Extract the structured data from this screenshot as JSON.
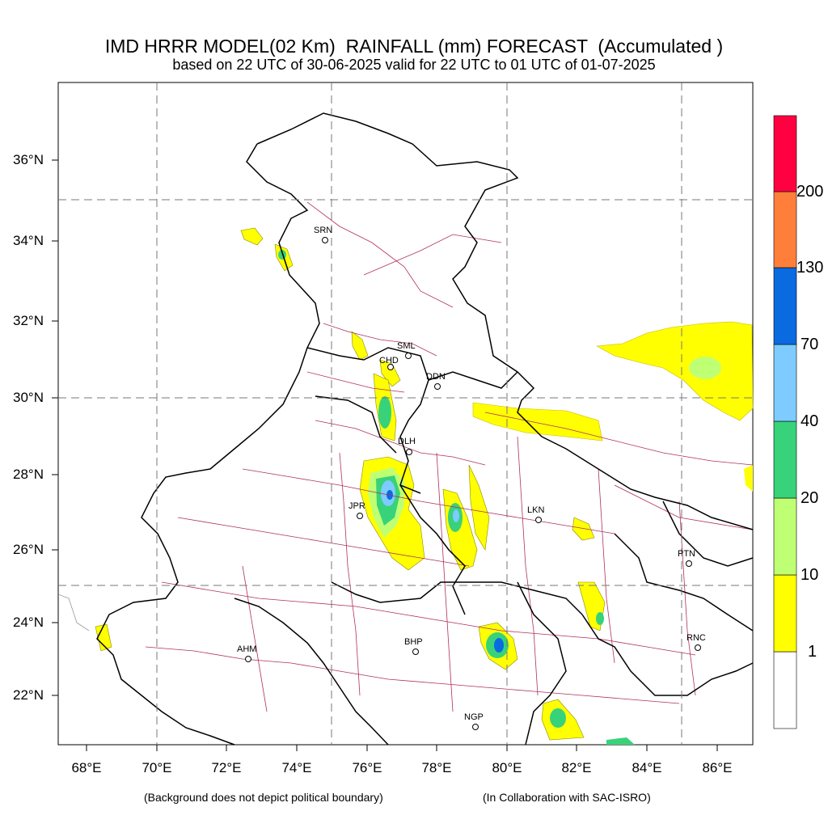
{
  "title": {
    "line1": "IMD HRRR MODEL(02 Km)  RAINFALL (mm) FORECAST  (Accumulated )",
    "line2": "based on 22 UTC of 30-06-2025 valid for 22 UTC to 01 UTC of 01-07-2025"
  },
  "axes": {
    "lat_labels": [
      "36°N",
      "34°N",
      "32°N",
      "30°N",
      "28°N",
      "26°N",
      "24°N",
      "22°N"
    ],
    "lon_labels": [
      "68°E",
      "70°E",
      "72°E",
      "74°E",
      "76°E",
      "78°E",
      "80°E",
      "82°E",
      "84°E",
      "86°E"
    ]
  },
  "colorbar": {
    "labels": [
      "1",
      "10",
      "20",
      "40",
      "70",
      "130",
      "200"
    ],
    "colors": [
      "#ffffff",
      "#ffff00",
      "#bfff73",
      "#38d27a",
      "#7ecbff",
      "#0a6be0",
      "#ff7f3a",
      "#ff0040"
    ]
  },
  "cities": [
    {
      "code": "SRN"
    },
    {
      "code": "SML"
    },
    {
      "code": "CHD"
    },
    {
      "code": "DDN"
    },
    {
      "code": "DLH"
    },
    {
      "code": "JPR"
    },
    {
      "code": "LKN"
    },
    {
      "code": "PTN"
    },
    {
      "code": "RNC"
    },
    {
      "code": "AHM"
    },
    {
      "code": "BHP"
    },
    {
      "code": "NGP"
    }
  ],
  "footer": {
    "left": "(Background does not depict political boundary)",
    "right": "(In Collaboration with SAC-ISRO)"
  }
}
